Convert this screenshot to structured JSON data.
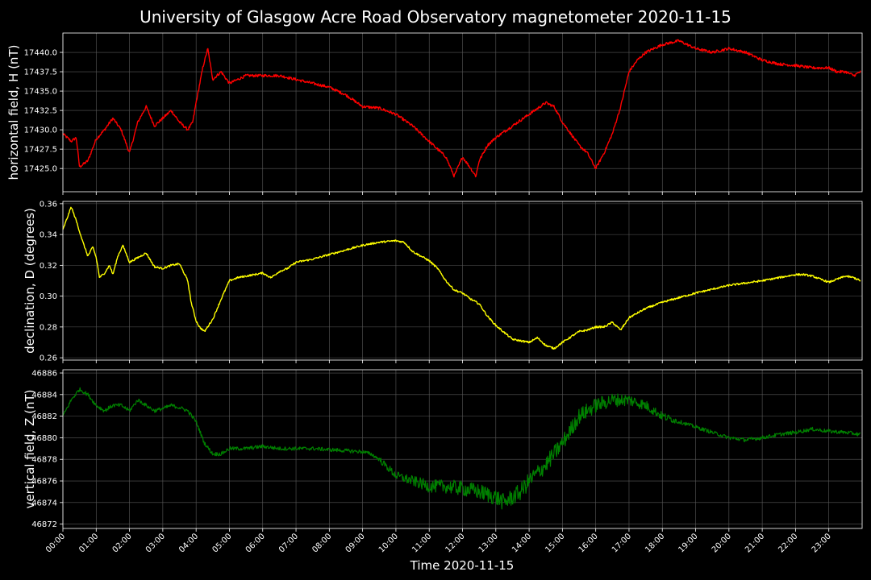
{
  "title": "University of Glasgow Acre Road Observatory magnetometer 2020-11-15",
  "xlabel": "Time 2020-11-15",
  "x_ticks": [
    "00:00",
    "01:00",
    "02:00",
    "03:00",
    "04:00",
    "05:00",
    "06:00",
    "07:00",
    "08:00",
    "09:00",
    "10:00",
    "11:00",
    "12:00",
    "13:00",
    "14:00",
    "15:00",
    "16:00",
    "17:00",
    "18:00",
    "19:00",
    "20:00",
    "21:00",
    "22:00",
    "23:00"
  ],
  "colors": {
    "background": "#000000",
    "grid": "#5a5a5a",
    "text": "#ffffff",
    "H": "#ff0000",
    "D": "#ffff00",
    "Z": "#008000"
  },
  "chart_data": [
    {
      "type": "line",
      "name": "H",
      "ylabel": "horizontal field, H (nT)",
      "xlim": [
        0,
        24
      ],
      "ylim": [
        17422.0,
        17442.5
      ],
      "ytick_values": [
        17425.0,
        17427.5,
        17430.0,
        17432.5,
        17435.0,
        17437.5,
        17440.0
      ],
      "ytick_labels": [
        "17425.0",
        "17427.5",
        "17430.0",
        "17432.5",
        "17435.0",
        "17437.5",
        "17440.0"
      ],
      "noise": 0.35,
      "x": [
        0,
        0.25,
        0.4,
        0.5,
        0.75,
        1.0,
        1.25,
        1.5,
        1.75,
        2.0,
        2.25,
        2.5,
        2.75,
        3.0,
        3.25,
        3.5,
        3.75,
        3.9,
        4.0,
        4.2,
        4.35,
        4.5,
        4.75,
        5.0,
        5.5,
        6.0,
        6.5,
        7.0,
        7.5,
        8.0,
        8.5,
        9.0,
        9.5,
        10.0,
        10.5,
        11.0,
        11.5,
        11.75,
        12.0,
        12.25,
        12.4,
        12.5,
        12.75,
        13.0,
        13.5,
        14.0,
        14.5,
        14.75,
        15.0,
        15.5,
        15.75,
        16.0,
        16.25,
        16.5,
        16.75,
        17.0,
        17.25,
        17.5,
        18.0,
        18.5,
        19.0,
        19.5,
        20.0,
        20.5,
        21.0,
        21.5,
        22.0,
        22.5,
        23.0,
        23.25,
        23.5,
        23.75,
        23.95
      ],
      "y": [
        17429.5,
        17428.5,
        17429.0,
        17425.2,
        17426.0,
        17428.8,
        17430.0,
        17431.5,
        17430.0,
        17427.0,
        17431.0,
        17433.0,
        17430.5,
        17431.5,
        17432.5,
        17431.0,
        17430.0,
        17431.0,
        17433.5,
        17438.0,
        17440.5,
        17436.5,
        17437.5,
        17436.0,
        17437.0,
        17437.0,
        17437.0,
        17436.5,
        17436.0,
        17435.5,
        17434.5,
        17433.0,
        17432.8,
        17432.0,
        17430.5,
        17428.5,
        17426.5,
        17424.0,
        17426.5,
        17425.0,
        17424.0,
        17426.0,
        17428.0,
        17429.0,
        17430.5,
        17432.0,
        17433.5,
        17433.0,
        17431.0,
        17428.0,
        17427.0,
        17425.0,
        17427.0,
        17429.5,
        17433.0,
        17437.5,
        17439.0,
        17440.0,
        17441.0,
        17441.5,
        17440.5,
        17440.0,
        17440.5,
        17440.0,
        17439.0,
        17438.5,
        17438.3,
        17438.0,
        17438.0,
        17437.5,
        17437.5,
        17437.0,
        17437.5
      ]
    },
    {
      "type": "line",
      "name": "D",
      "ylabel": "declination, D (degrees)",
      "xlim": [
        0,
        24
      ],
      "ylim": [
        0.2585,
        0.3615
      ],
      "ytick_values": [
        0.26,
        0.28,
        0.3,
        0.32,
        0.34,
        0.36
      ],
      "ytick_labels": [
        "0.26",
        "0.28",
        "0.30",
        "0.32",
        "0.34",
        "0.36"
      ],
      "noise": 0.0012,
      "x": [
        0,
        0.15,
        0.25,
        0.4,
        0.6,
        0.75,
        0.9,
        1.0,
        1.1,
        1.25,
        1.4,
        1.5,
        1.65,
        1.8,
        2.0,
        2.25,
        2.5,
        2.75,
        3.0,
        3.25,
        3.5,
        3.75,
        3.85,
        4.0,
        4.1,
        4.25,
        4.5,
        4.75,
        5.0,
        5.25,
        5.5,
        6.0,
        6.25,
        6.5,
        6.75,
        7.0,
        7.5,
        8.0,
        8.5,
        9.0,
        9.5,
        10.0,
        10.25,
        10.5,
        11.0,
        11.25,
        11.5,
        11.75,
        12.0,
        12.25,
        12.5,
        12.75,
        13.0,
        13.5,
        14.0,
        14.25,
        14.5,
        14.75,
        15.0,
        15.5,
        15.75,
        16.0,
        16.25,
        16.5,
        16.75,
        17.0,
        17.5,
        18.0,
        19.0,
        20.0,
        21.0,
        21.5,
        22.0,
        22.25,
        22.5,
        22.75,
        23.0,
        23.25,
        23.5,
        23.75,
        23.95
      ],
      "y": [
        0.343,
        0.352,
        0.358,
        0.349,
        0.335,
        0.326,
        0.332,
        0.325,
        0.312,
        0.315,
        0.32,
        0.314,
        0.326,
        0.333,
        0.322,
        0.325,
        0.328,
        0.319,
        0.318,
        0.32,
        0.321,
        0.31,
        0.296,
        0.284,
        0.28,
        0.277,
        0.285,
        0.298,
        0.31,
        0.312,
        0.313,
        0.315,
        0.312,
        0.316,
        0.318,
        0.322,
        0.324,
        0.327,
        0.33,
        0.333,
        0.335,
        0.336,
        0.335,
        0.329,
        0.323,
        0.318,
        0.31,
        0.304,
        0.302,
        0.298,
        0.295,
        0.287,
        0.281,
        0.272,
        0.27,
        0.273,
        0.268,
        0.266,
        0.27,
        0.277,
        0.278,
        0.28,
        0.28,
        0.283,
        0.278,
        0.286,
        0.292,
        0.296,
        0.302,
        0.307,
        0.31,
        0.312,
        0.314,
        0.314,
        0.313,
        0.311,
        0.309,
        0.311,
        0.313,
        0.312,
        0.31
      ]
    },
    {
      "type": "line",
      "name": "Z",
      "ylabel": "vertical field, Z (nT)",
      "xlim": [
        0,
        24
      ],
      "ylim": [
        46871.6,
        46886.3
      ],
      "ytick_values": [
        46872,
        46874,
        46876,
        46878,
        46880,
        46882,
        46884,
        46886
      ],
      "ytick_labels": [
        "46872",
        "46874",
        "46876",
        "46878",
        "46880",
        "46882",
        "46884",
        "46886"
      ],
      "noise": 0.35,
      "noise_bands": [
        [
          9.5,
          18.5,
          1.6
        ]
      ],
      "x": [
        0,
        0.25,
        0.5,
        0.75,
        1.0,
        1.25,
        1.5,
        1.75,
        2.0,
        2.25,
        2.5,
        2.75,
        3.0,
        3.25,
        3.5,
        3.75,
        4.0,
        4.25,
        4.5,
        4.75,
        5.0,
        5.5,
        6.0,
        6.5,
        7.0,
        7.5,
        8.0,
        8.5,
        9.0,
        9.25,
        9.5,
        10.0,
        10.5,
        11.0,
        11.5,
        12.0,
        12.5,
        13.0,
        13.25,
        13.5,
        13.75,
        14.0,
        14.5,
        15.0,
        15.5,
        16.0,
        16.5,
        17.0,
        17.5,
        18.0,
        18.5,
        19.0,
        19.5,
        20.0,
        20.5,
        21.0,
        21.5,
        22.0,
        22.5,
        23.0,
        23.5,
        23.95
      ],
      "y": [
        46882.0,
        46883.5,
        46884.5,
        46884.0,
        46883.0,
        46882.5,
        46883.0,
        46883.0,
        46882.5,
        46883.5,
        46883.0,
        46882.5,
        46882.7,
        46883.0,
        46882.8,
        46882.5,
        46881.5,
        46879.5,
        46878.5,
        46878.5,
        46879.0,
        46879.0,
        46879.2,
        46879.0,
        46879.0,
        46879.0,
        46878.9,
        46878.8,
        46878.7,
        46878.5,
        46878.0,
        46876.5,
        46876.0,
        46875.5,
        46875.5,
        46875.3,
        46875.0,
        46874.5,
        46874.0,
        46874.5,
        46875.0,
        46876.0,
        46877.5,
        46879.5,
        46882.0,
        46883.0,
        46883.5,
        46883.5,
        46883.0,
        46882.0,
        46881.5,
        46881.0,
        46880.5,
        46880.0,
        46879.8,
        46880.0,
        46880.3,
        46880.5,
        46880.8,
        46880.6,
        46880.5,
        46880.3
      ]
    }
  ]
}
